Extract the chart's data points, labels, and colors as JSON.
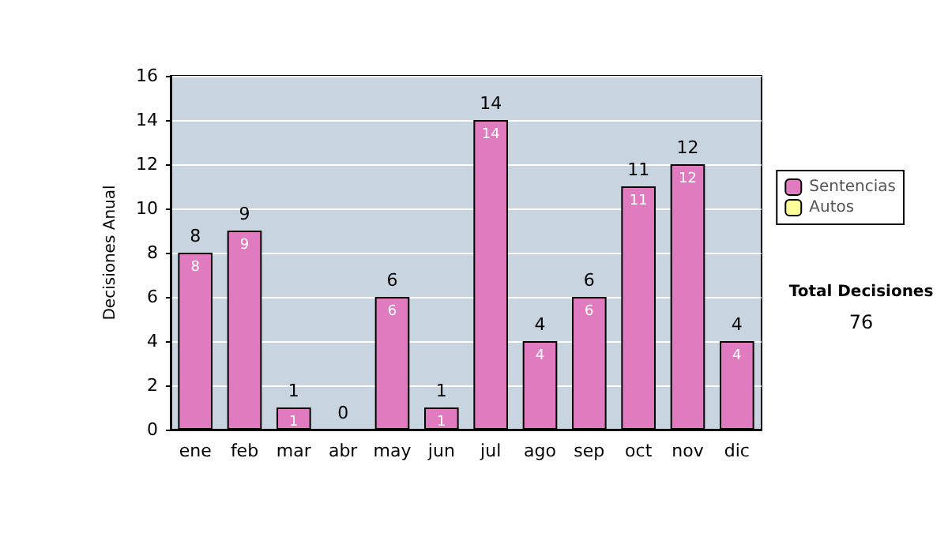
{
  "chart_data": {
    "type": "bar",
    "ylabel": "Decisiones Anual",
    "categories": [
      "ene",
      "feb",
      "mar",
      "abr",
      "may",
      "jun",
      "jul",
      "ago",
      "sep",
      "oct",
      "nov",
      "dic"
    ],
    "series": [
      {
        "name": "Sentencias",
        "color": "#e07bc0",
        "values": [
          8,
          9,
          1,
          0,
          6,
          1,
          14,
          4,
          6,
          11,
          12,
          4
        ],
        "value_labels": [
          "8",
          "9",
          "1",
          null,
          "6",
          "1",
          "14",
          "4",
          "6",
          "11",
          "12",
          "4"
        ]
      },
      {
        "name": "Autos",
        "color": "#ffff99",
        "values": [
          0,
          0,
          0,
          0,
          0,
          0,
          0,
          0,
          0,
          0,
          0,
          0
        ]
      }
    ],
    "stacked": true,
    "totals": [
      "8",
      "9",
      "1",
      "0",
      "6",
      "1",
      "14",
      "4",
      "6",
      "11",
      "12",
      "4"
    ],
    "ylim": [
      0,
      16
    ],
    "yticks": [
      0,
      2,
      4,
      6,
      8,
      10,
      12,
      14,
      16
    ],
    "grid": "y",
    "legend": "right",
    "annotations": [
      "Total Decisiones",
      "76"
    ]
  }
}
